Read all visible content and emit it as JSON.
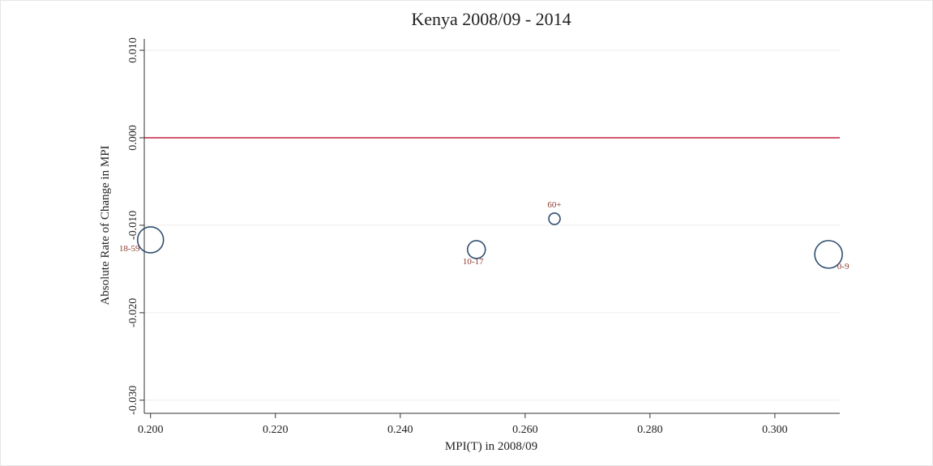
{
  "chart_data": {
    "type": "scatter",
    "title": "Kenya 2008/09 - 2014",
    "x_label": "MPI(T) in 2008/09",
    "y_label": "Absolute Rate of Change in MPI",
    "xlim": [
      0.199,
      0.3104
    ],
    "ylim": [
      -0.0315,
      0.0113
    ],
    "xticks": [
      {
        "value": 0.2,
        "label": "0.200"
      },
      {
        "value": 0.22,
        "label": "0.220"
      },
      {
        "value": 0.24,
        "label": "0.240"
      },
      {
        "value": 0.26,
        "label": "0.260"
      },
      {
        "value": 0.28,
        "label": "0.280"
      },
      {
        "value": 0.3,
        "label": "0.300"
      }
    ],
    "yticks": [
      {
        "value": -0.03,
        "label": "-0.030"
      },
      {
        "value": -0.02,
        "label": "-0.020"
      },
      {
        "value": -0.01,
        "label": "-0.010"
      },
      {
        "value": 0,
        "label": "0.000"
      },
      {
        "value": 0.01,
        "label": "0.010"
      }
    ],
    "grid": true,
    "reference_line": {
      "value": 0,
      "color": "#d45a6f"
    },
    "series": [
      {
        "color": "#2f4f6f",
        "labels": [
          "18-59",
          "10-17",
          "60+",
          "0-9"
        ],
        "x": [
          0.2,
          0.2522,
          0.2647,
          0.3086
        ],
        "values": [
          -0.01167,
          -0.01278,
          -0.00926,
          -0.01333
        ],
        "sizes": [
          16,
          11,
          7,
          17
        ]
      }
    ]
  }
}
